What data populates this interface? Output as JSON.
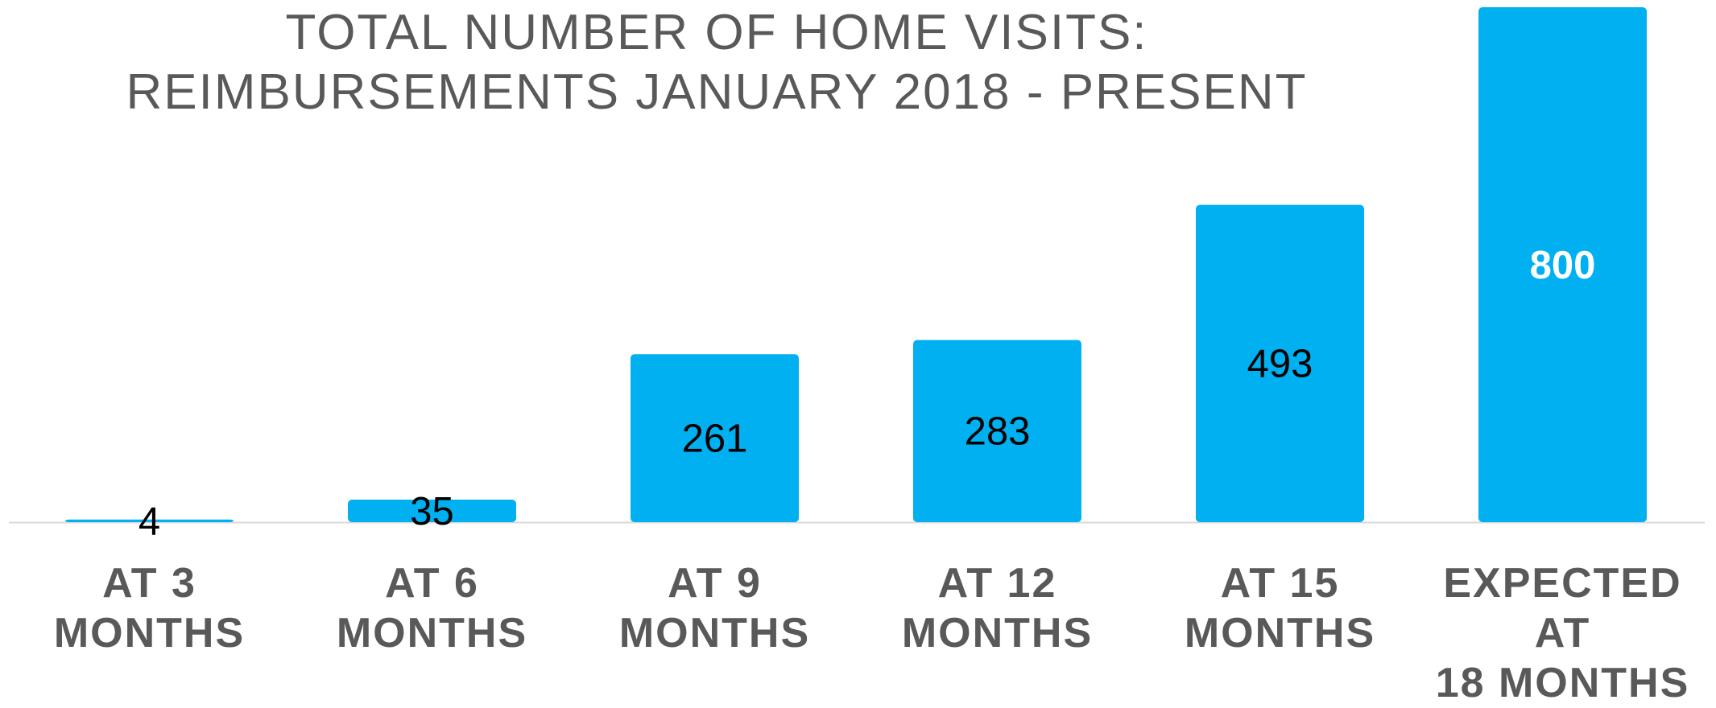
{
  "chart_data": {
    "type": "bar",
    "title": "TOTAL NUMBER OF HOME VISITS:\nREIMBURSEMENTS JANUARY 2018 - PRESENT",
    "categories": [
      "AT 3\nMONTHS",
      "AT 6\nMONTHS",
      "AT 9\nMONTHS",
      "AT 12\nMONTHS",
      "AT 15\nMONTHS",
      "EXPECTED AT\n18 MONTHS"
    ],
    "values": [
      4,
      35,
      261,
      283,
      493,
      800
    ],
    "color": "#00b0f0",
    "label_colors": [
      "#000000",
      "#000000",
      "#000000",
      "#000000",
      "#000000",
      "#ffffff"
    ]
  }
}
